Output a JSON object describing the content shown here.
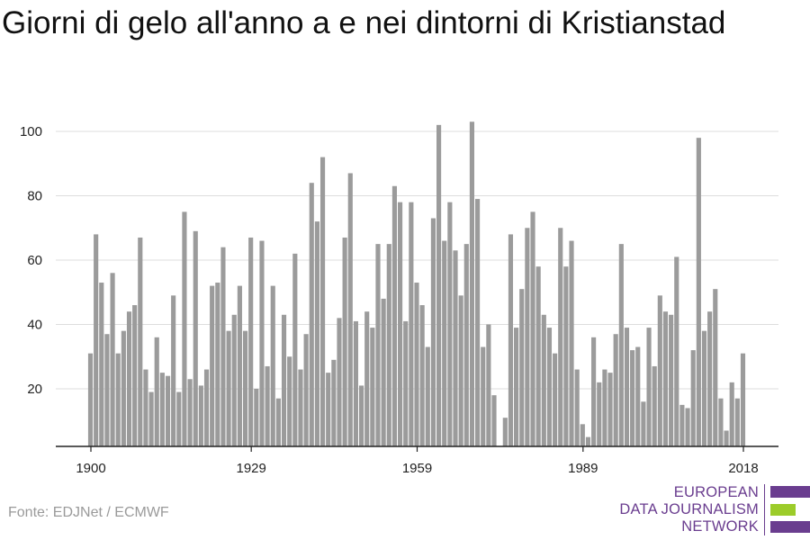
{
  "title": "Giorni di gelo all'anno a e nei dintorni di Kristianstad",
  "source": "Fonte: EDJNet / ECMWF",
  "logo": {
    "lines": [
      "EUROPEAN",
      "DATA JOURNALISM",
      "NETWORK"
    ],
    "text_color": "#6a3d8f",
    "bar_colors": [
      "#6a3d8f",
      "#9ccc2a",
      "#6a3d8f"
    ]
  },
  "colors": {
    "bar": "#9b9b9b",
    "grid": "#dddddd",
    "axis": "#222222",
    "tick_text": "#222222"
  },
  "chart_data": {
    "type": "bar",
    "title": "Giorni di gelo all'anno a e nei dintorni di Kristianstad",
    "xlabel": "",
    "ylabel": "",
    "x_start": 1900,
    "x_ticks": [
      1900,
      1929,
      1959,
      1989,
      2018
    ],
    "xlim": [
      1900,
      2018
    ],
    "y_ticks": [
      20,
      40,
      60,
      80,
      100
    ],
    "ylim": [
      0,
      108
    ],
    "grid": true,
    "legend": "none",
    "values": [
      31,
      68,
      53,
      37,
      56,
      31,
      38,
      44,
      46,
      67,
      26,
      19,
      36,
      25,
      24,
      49,
      19,
      75,
      23,
      69,
      21,
      26,
      52,
      53,
      64,
      38,
      43,
      52,
      38,
      67,
      20,
      66,
      27,
      52,
      17,
      43,
      30,
      62,
      26,
      37,
      84,
      72,
      92,
      25,
      29,
      42,
      67,
      87,
      41,
      21,
      44,
      39,
      65,
      48,
      65,
      83,
      78,
      41,
      78,
      53,
      46,
      33,
      73,
      102,
      66,
      78,
      63,
      49,
      65,
      103,
      79,
      33,
      40,
      18,
      1,
      11,
      68,
      39,
      51,
      70,
      75,
      58,
      43,
      39,
      31,
      70,
      58,
      66,
      26,
      9,
      5,
      36,
      22,
      26,
      25,
      37,
      65,
      39,
      32,
      33,
      16,
      39,
      27,
      49,
      44,
      43,
      61,
      15,
      14,
      32,
      98,
      38,
      44,
      51,
      17,
      7,
      22,
      17,
      31
    ]
  }
}
